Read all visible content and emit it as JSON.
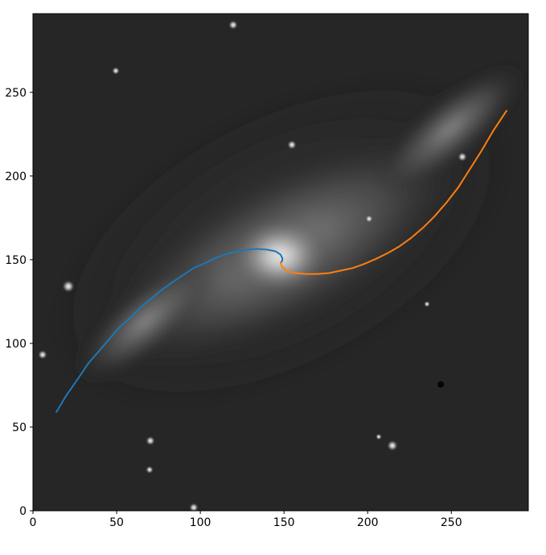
{
  "chart_data": {
    "type": "line",
    "title": "",
    "xlabel": "",
    "ylabel": "",
    "xlim": [
      0,
      296
    ],
    "ylim": [
      0,
      297
    ],
    "x_ticks": [
      0,
      50,
      100,
      150,
      200,
      250
    ],
    "y_ticks": [
      0,
      50,
      100,
      150,
      200,
      250
    ],
    "grid": false,
    "legend": "none",
    "background": "grayscale galaxy image",
    "series": [
      {
        "color": "#1f77b4",
        "x": [
          14,
          20,
          27,
          33,
          40,
          46,
          52,
          59,
          65,
          71,
          77,
          84,
          90,
          96,
          103,
          109,
          116,
          122,
          128,
          134,
          140,
          145,
          148,
          149,
          149,
          148
        ],
        "y": [
          59,
          69,
          79,
          88,
          96,
          103,
          110,
          116,
          122,
          127,
          132,
          137,
          141,
          145,
          148,
          151,
          153.5,
          155,
          156,
          156.5,
          156,
          155,
          153,
          151,
          149.5,
          148
        ]
      },
      {
        "color": "#ff7f0e",
        "x": [
          148,
          149,
          152,
          157,
          163,
          170,
          177,
          184,
          191,
          198,
          205,
          212,
          219,
          226,
          233,
          240,
          247,
          254,
          261,
          268,
          275,
          283
        ],
        "y": [
          148,
          145.5,
          143,
          142,
          141.5,
          141.5,
          142,
          143.5,
          145,
          147.5,
          150.5,
          154,
          158,
          163,
          169,
          176,
          184,
          193,
          204,
          215,
          227,
          239
        ]
      }
    ]
  }
}
